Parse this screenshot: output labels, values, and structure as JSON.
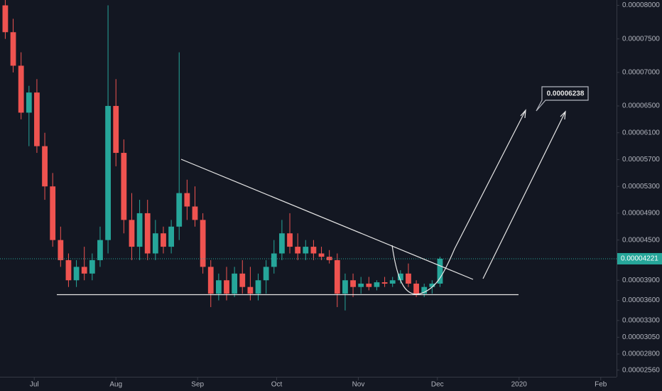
{
  "chart_data": {
    "type": "candlestick",
    "x": [
      0,
      3,
      6,
      9,
      12,
      15,
      18,
      21,
      24,
      27,
      30,
      33,
      36,
      39,
      42,
      45,
      48,
      51,
      54,
      57,
      60,
      63,
      66,
      69,
      72,
      75,
      78,
      81,
      84,
      87,
      90,
      93,
      96,
      99,
      102,
      105,
      108,
      111,
      114,
      117,
      120,
      123,
      126,
      129,
      132,
      135,
      138,
      141,
      144,
      147,
      150,
      153,
      156,
      159,
      162,
      165
    ],
    "open": [
      8e-05,
      7.6e-05,
      7.1e-05,
      6.4e-05,
      6.7e-05,
      5.9e-05,
      5.3e-05,
      4.5e-05,
      4.2e-05,
      3.9e-05,
      4.1e-05,
      4e-05,
      4.2e-05,
      4.5e-05,
      6.5e-05,
      5.8e-05,
      4.8e-05,
      4.4e-05,
      4.9e-05,
      4.3e-05,
      4.6e-05,
      4.4e-05,
      4.7e-05,
      5.2e-05,
      5e-05,
      4.8e-05,
      4.1e-05,
      3.7e-05,
      3.9e-05,
      3.7e-05,
      4e-05,
      3.8e-05,
      3.7e-05,
      3.9e-05,
      4.1e-05,
      4.3e-05,
      4.6e-05,
      4.4e-05,
      4.3e-05,
      4.4e-05,
      4.3e-05,
      4.25e-05,
      4.2e-05,
      3.7e-05,
      3.9e-05,
      3.8e-05,
      3.85e-05,
      3.8e-05,
      3.87e-05,
      3.85e-05,
      3.9e-05,
      4e-05,
      3.85e-05,
      3.7e-05,
      3.8e-05,
      3.85e-05
    ],
    "high": [
      8.1e-05,
      7.8e-05,
      7.3e-05,
      6.8e-05,
      6.9e-05,
      6.1e-05,
      5.5e-05,
      4.7e-05,
      4.3e-05,
      4.2e-05,
      4.4e-05,
      4.3e-05,
      4.7e-05,
      8e-05,
      6.9e-05,
      6e-05,
      5.2e-05,
      5.1e-05,
      5.1e-05,
      4.8e-05,
      4.7e-05,
      4.8e-05,
      7.3e-05,
      5.4e-05,
      5.3e-05,
      4.9e-05,
      4.2e-05,
      4e-05,
      4.1e-05,
      4.1e-05,
      4.2e-05,
      4.1e-05,
      4e-05,
      4.2e-05,
      4.5e-05,
      4.8e-05,
      4.9e-05,
      4.6e-05,
      4.5e-05,
      4.5e-05,
      4.4e-05,
      4.35e-05,
      4.3e-05,
      4e-05,
      4e-05,
      3.95e-05,
      3.95e-05,
      3.9e-05,
      3.95e-05,
      3.95e-05,
      4.05e-05,
      4.15e-05,
      3.9e-05,
      3.85e-05,
      3.9e-05,
      4.25e-05
    ],
    "low": [
      7.5e-05,
      7e-05,
      6.3e-05,
      5.9e-05,
      5.8e-05,
      5.1e-05,
      4.4e-05,
      4.1e-05,
      3.8e-05,
      3.8e-05,
      3.9e-05,
      3.9e-05,
      4.1e-05,
      4.3e-05,
      5.6e-05,
      4.6e-05,
      4.2e-05,
      4.2e-05,
      4.2e-05,
      4.2e-05,
      4.3e-05,
      4.3e-05,
      4.5e-05,
      4.8e-05,
      4.7e-05,
      4e-05,
      3.5e-05,
      3.6e-05,
      3.6e-05,
      3.65e-05,
      3.7e-05,
      3.6e-05,
      3.6e-05,
      3.7e-05,
      4e-05,
      4.2e-05,
      4.3e-05,
      4.2e-05,
      4.2e-05,
      4.2e-05,
      4.2e-05,
      4.15e-05,
      3.5e-05,
      3.45e-05,
      3.65e-05,
      3.7e-05,
      3.75e-05,
      3.75e-05,
      3.8e-05,
      3.8e-05,
      3.85e-05,
      3.8e-05,
      3.65e-05,
      3.65e-05,
      3.7e-05,
      3.8e-05
    ],
    "close": [
      7.6e-05,
      7.1e-05,
      6.4e-05,
      6.7e-05,
      5.9e-05,
      5.3e-05,
      4.5e-05,
      4.2e-05,
      3.9e-05,
      4.1e-05,
      4e-05,
      4.2e-05,
      4.5e-05,
      6.5e-05,
      5.8e-05,
      4.8e-05,
      4.4e-05,
      4.9e-05,
      4.3e-05,
      4.6e-05,
      4.4e-05,
      4.7e-05,
      5.2e-05,
      5e-05,
      4.8e-05,
      4.1e-05,
      3.7e-05,
      3.9e-05,
      3.7e-05,
      4e-05,
      3.8e-05,
      3.7e-05,
      3.9e-05,
      4.1e-05,
      4.3e-05,
      4.6e-05,
      4.4e-05,
      4.3e-05,
      4.4e-05,
      4.3e-05,
      4.25e-05,
      4.2e-05,
      3.7e-05,
      3.9e-05,
      3.8e-05,
      3.85e-05,
      3.8e-05,
      3.87e-05,
      3.85e-05,
      3.9e-05,
      4e-05,
      3.85e-05,
      3.7e-05,
      3.8e-05,
      3.85e-05,
      4.221e-05
    ],
    "up_color": "#26a69a",
    "down_color": "#ef5350",
    "xlim": [
      -2,
      232
    ],
    "xticks": [
      {
        "value": 11,
        "label": "Jul"
      },
      {
        "value": 42,
        "label": "Aug"
      },
      {
        "value": 73,
        "label": "Sep"
      },
      {
        "value": 103,
        "label": "Oct"
      },
      {
        "value": 134,
        "label": "Nov"
      },
      {
        "value": 164,
        "label": "Dec"
      },
      {
        "value": 195,
        "label": "2020"
      },
      {
        "value": 226,
        "label": "Feb"
      }
    ],
    "ylim": [
      2.45e-05,
      8.08e-05
    ],
    "yticks": [
      {
        "value": 8e-05,
        "label": "0.00008000"
      },
      {
        "value": 7.5e-05,
        "label": "0.00007500"
      },
      {
        "value": 7e-05,
        "label": "0.00007000"
      },
      {
        "value": 6.5e-05,
        "label": "0.00006500"
      },
      {
        "value": 6.1e-05,
        "label": "0.00006100"
      },
      {
        "value": 5.7e-05,
        "label": "0.00005700"
      },
      {
        "value": 5.3e-05,
        "label": "0.00005300"
      },
      {
        "value": 4.9e-05,
        "label": "0.00004900"
      },
      {
        "value": 4.5e-05,
        "label": "0.00004500"
      },
      {
        "value": 3.9e-05,
        "label": "0.00003900"
      },
      {
        "value": 3.6e-05,
        "label": "0.00003600"
      },
      {
        "value": 3.3e-05,
        "label": "0.00003300"
      },
      {
        "value": 3.05e-05,
        "label": "0.00003050"
      },
      {
        "value": 2.8e-05,
        "label": "0.00002800"
      },
      {
        "value": 2.56e-05,
        "label": "0.00002560"
      }
    ],
    "last_price": 4.221e-05,
    "last_price_color": "#26a69a",
    "target_label": "0.00006238",
    "grid": false
  }
}
